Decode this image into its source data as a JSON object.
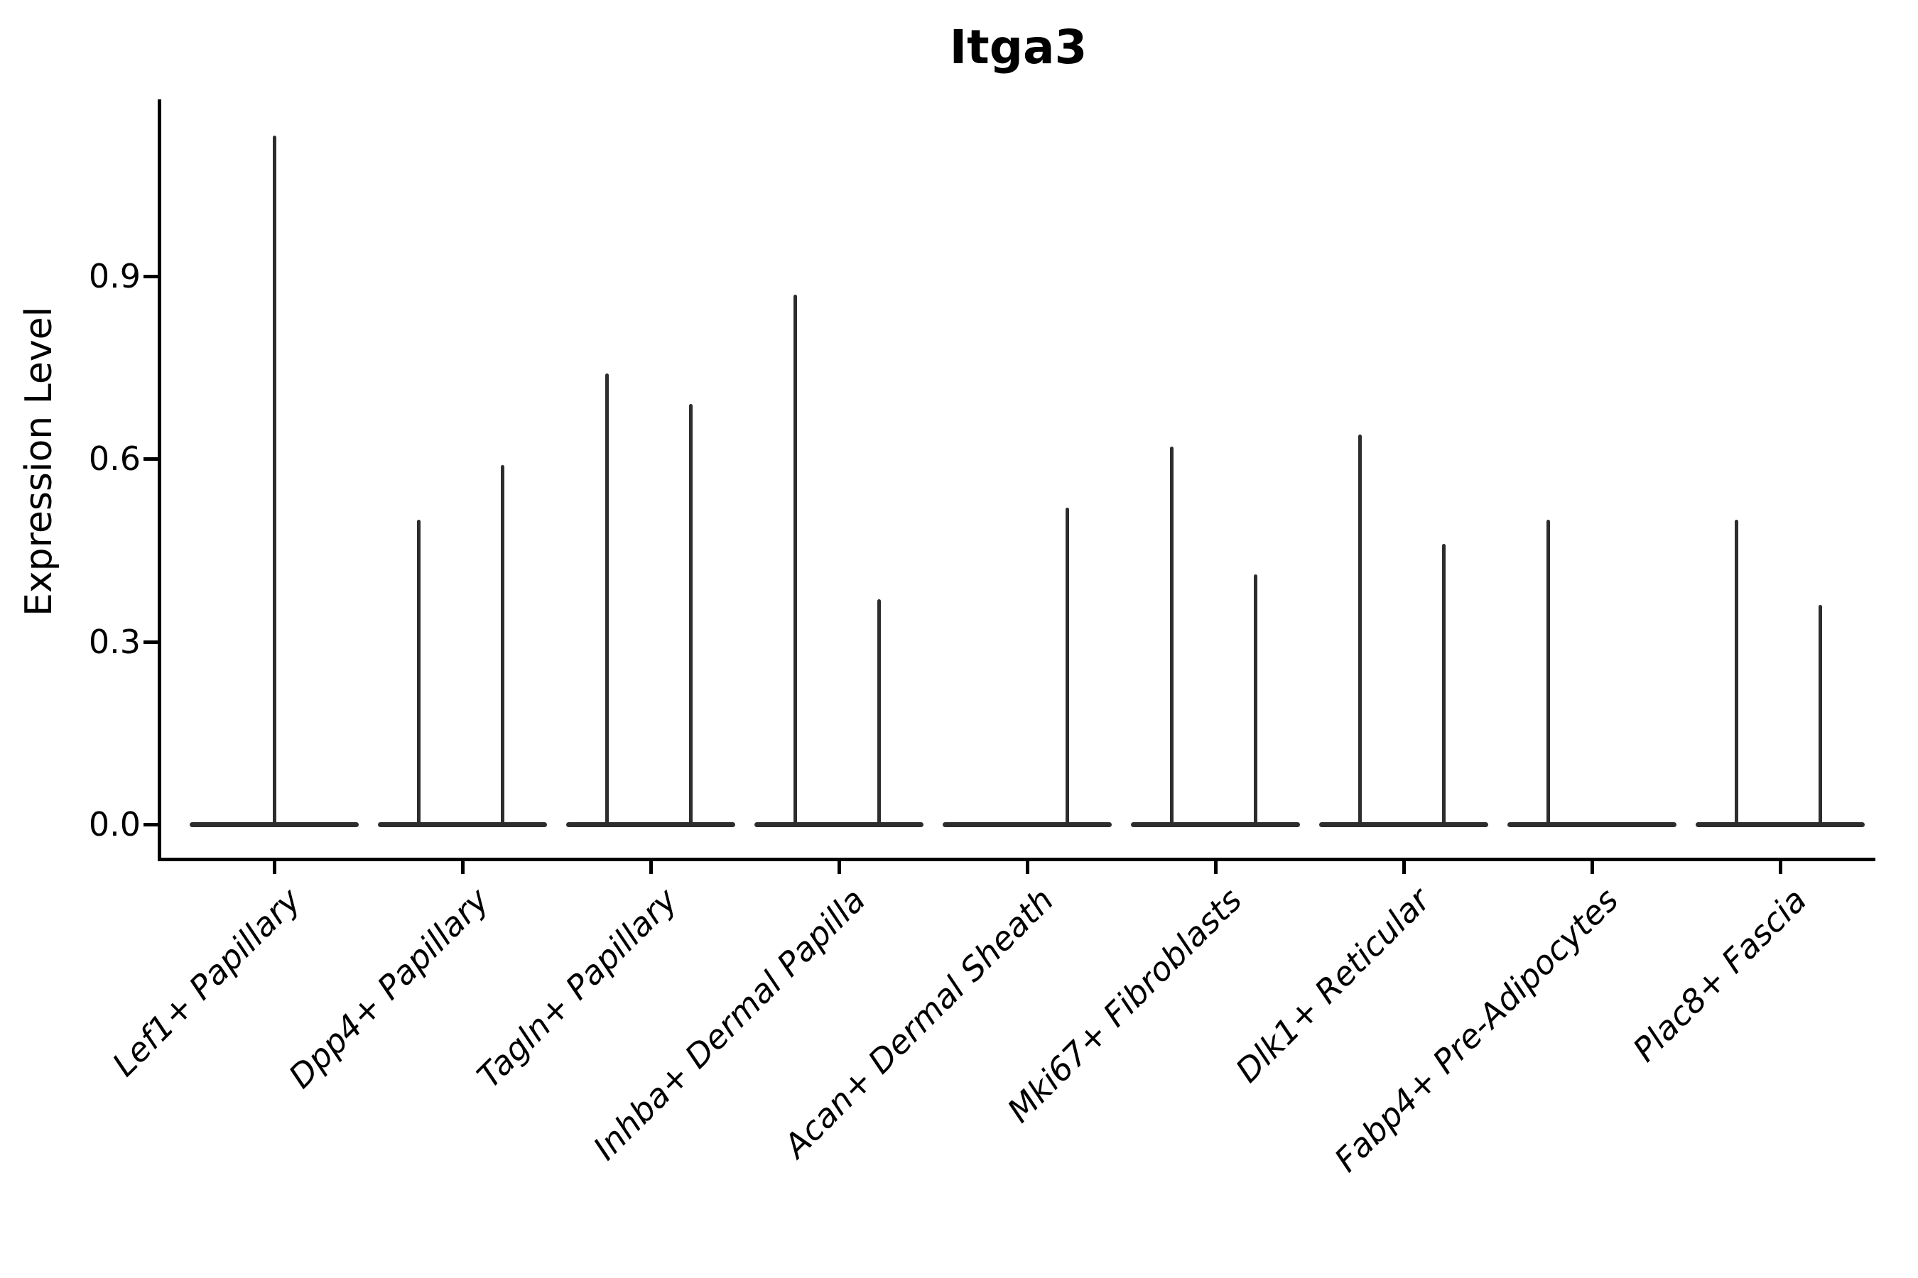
{
  "chart_data": {
    "type": "violin",
    "title": "Itga3",
    "xlabel": "",
    "ylabel": "Expression Level",
    "grid": false,
    "legend": "none",
    "ylim": [
      -0.055,
      1.19
    ],
    "y_axis": {
      "ticks": [
        {
          "value": 0.0,
          "label": "0.0"
        },
        {
          "value": 0.3,
          "label": "0.3"
        },
        {
          "value": 0.6,
          "label": "0.6"
        },
        {
          "value": 0.9,
          "label": "0.9"
        }
      ]
    },
    "categories": [
      "Lef1+ Papillary",
      "Dpp4+ Papillary",
      "Tagln+ Papillary",
      "Inhba+ Dermal Papilla",
      "Acan+ Dermal Sheath",
      "Mki67+ Fibroblasts",
      "Dlk1+ Reticular",
      "Fabp4+ Pre-Adipocytes",
      "Plac8+ Fascia"
    ],
    "violins": [
      {
        "category": "Lef1+ Papillary",
        "spikes": [
          {
            "position": "center",
            "max": 1.13
          }
        ]
      },
      {
        "category": "Dpp4+ Papillary",
        "spikes": [
          {
            "position": "left",
            "max": 0.5
          },
          {
            "position": "right",
            "max": 0.59
          }
        ]
      },
      {
        "category": "Tagln+ Papillary",
        "spikes": [
          {
            "position": "left",
            "max": 0.74
          },
          {
            "position": "right",
            "max": 0.69
          }
        ]
      },
      {
        "category": "Inhba+ Dermal Papilla",
        "spikes": [
          {
            "position": "left",
            "max": 0.87
          },
          {
            "position": "right",
            "max": 0.37
          }
        ]
      },
      {
        "category": "Acan+ Dermal Sheath",
        "spikes": [
          {
            "position": "right",
            "max": 0.52
          }
        ]
      },
      {
        "category": "Mki67+ Fibroblasts",
        "spikes": [
          {
            "position": "left",
            "max": 0.62
          },
          {
            "position": "right",
            "max": 0.41
          }
        ]
      },
      {
        "category": "Dlk1+ Reticular",
        "spikes": [
          {
            "position": "left",
            "max": 0.64
          },
          {
            "position": "right",
            "max": 0.46
          }
        ]
      },
      {
        "category": "Fabp4+ Pre-Adipocytes",
        "spikes": [
          {
            "position": "left",
            "max": 0.5
          }
        ]
      },
      {
        "category": "Plac8+ Fascia",
        "spikes": [
          {
            "position": "left",
            "max": 0.5
          },
          {
            "position": "right",
            "max": 0.36
          }
        ]
      }
    ],
    "colors": {
      "violin_line": "#2d2d2d",
      "axis": "#000000",
      "text": "#000000",
      "background": "#ffffff"
    }
  }
}
